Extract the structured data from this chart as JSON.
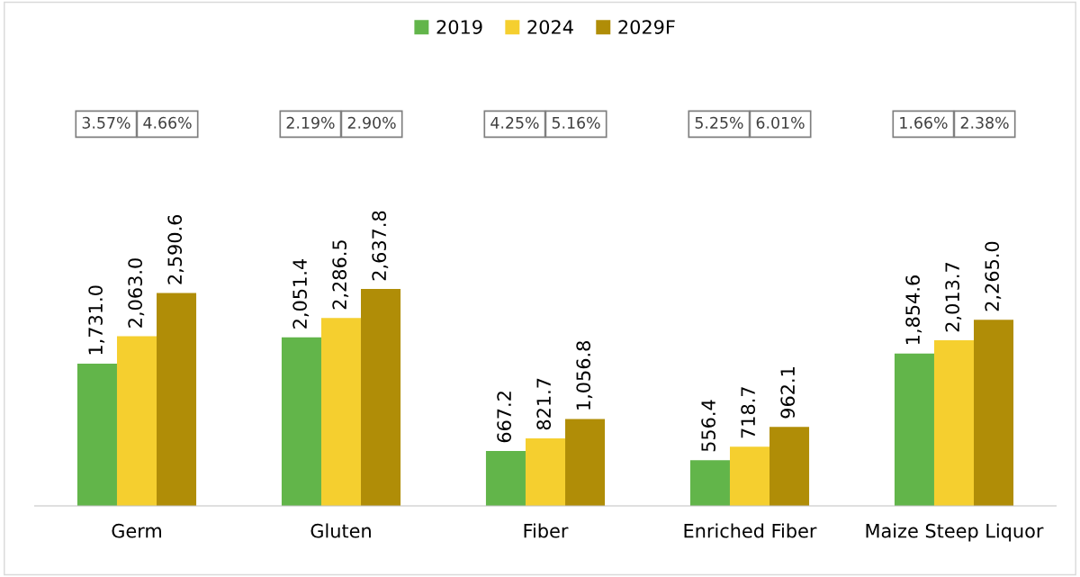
{
  "chart_data": {
    "type": "bar",
    "categories": [
      "Germ",
      "Gluten",
      "Fiber",
      "Enriched Fiber",
      "Maize Steep Liquor"
    ],
    "series": [
      {
        "name": "2019",
        "color": "#62b54a",
        "values": [
          1731.0,
          2051.4,
          667.2,
          556.4,
          1854.6
        ],
        "value_labels": [
          "1,731.0",
          "2,051.4",
          "667.2",
          "556.4",
          "1,854.6"
        ]
      },
      {
        "name": "2024",
        "color": "#f5cf2f",
        "values": [
          2063.0,
          2286.5,
          821.7,
          718.7,
          2013.7
        ],
        "value_labels": [
          "2,063.0",
          "2,286.5",
          "821.7",
          "718.7",
          "2,013.7"
        ]
      },
      {
        "name": "2029F",
        "color": "#b08d07",
        "values": [
          2590.6,
          2637.8,
          1056.8,
          962.1,
          2265.0
        ],
        "value_labels": [
          "2,590.6",
          "2,637.8",
          "1,056.8",
          "962.1",
          "2,265.0"
        ]
      }
    ],
    "annotations": [
      "3.57%",
      "4.66%",
      "2.19%",
      "2.90%",
      "4.25%",
      "5.16%",
      "5.25%",
      "6.01%",
      "1.66%",
      "2.38%"
    ],
    "legend": "top",
    "grid": false,
    "tick_labels": "x"
  }
}
